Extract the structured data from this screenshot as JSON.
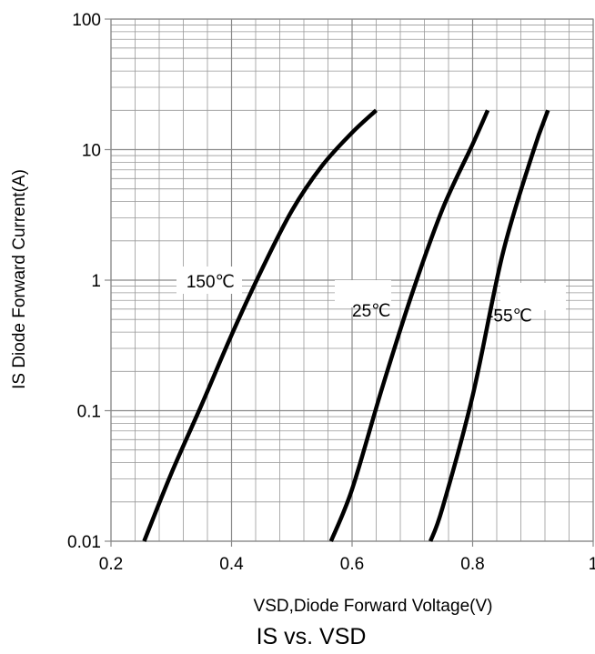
{
  "chart_data": {
    "type": "line",
    "title": "IS vs. VSD",
    "xlabel": "VSD,Diode Forward Voltage(V)",
    "ylabel": "IS Diode Forward Current(A)",
    "xlim": [
      0.2,
      1
    ],
    "ylim": [
      0.01,
      100
    ],
    "yscale": "log",
    "grid": true,
    "x_ticks": [
      "0.2",
      "0.4",
      "0.6",
      "0.8",
      "1"
    ],
    "x_tick_values": [
      0.2,
      0.4,
      0.6,
      0.8,
      1.0
    ],
    "y_ticks": [
      "0.01",
      "0.1",
      "1",
      "10",
      "100"
    ],
    "y_tick_values": [
      0.01,
      0.1,
      1,
      10,
      100
    ],
    "line_color": "#000000",
    "grid_color": "#999999",
    "series": [
      {
        "label": "150℃",
        "x": [
          0.255,
          0.3,
          0.35,
          0.4,
          0.45,
          0.5,
          0.55,
          0.6,
          0.64
        ],
        "y": [
          0.01,
          0.033,
          0.11,
          0.38,
          1.2,
          3.4,
          7.5,
          13.5,
          20
        ]
      },
      {
        "label": "25℃",
        "x": [
          0.565,
          0.6,
          0.65,
          0.7,
          0.75,
          0.8,
          0.825
        ],
        "y": [
          0.01,
          0.025,
          0.15,
          0.8,
          3.5,
          11,
          20
        ]
      },
      {
        "label": "-55℃",
        "x": [
          0.73,
          0.75,
          0.8,
          0.85,
          0.9,
          0.925
        ],
        "y": [
          0.01,
          0.018,
          0.13,
          1.6,
          9.5,
          20
        ]
      }
    ]
  }
}
